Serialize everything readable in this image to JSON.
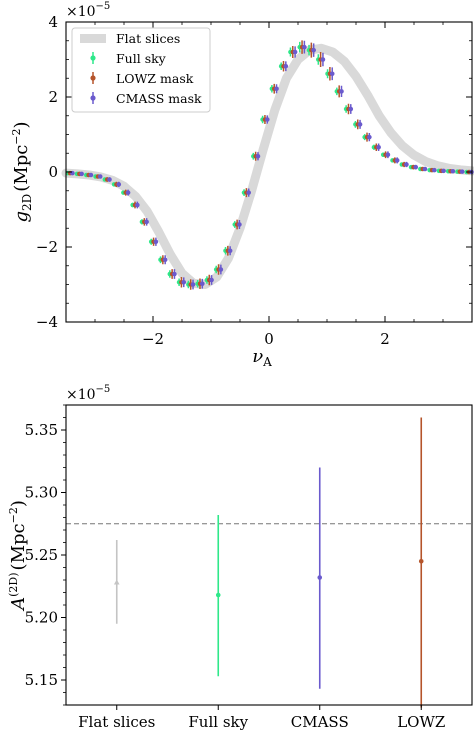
{
  "chart_data": [
    {
      "type": "line",
      "xlabel": "ν_A",
      "ylabel": "g_2D (Mpc^-2)",
      "ylabel_parts": {
        "sym": "g",
        "sub": "2D",
        "open": "(Mpc",
        "sup": "−2",
        "close": ")"
      },
      "xlabel_parts": {
        "sym": "ν",
        "sub": "A"
      },
      "multiplier": {
        "base": "×10",
        "exp": "−5"
      },
      "xlim": [
        -3.5,
        3.5
      ],
      "ylim": [
        -4,
        4
      ],
      "xticks": [
        -2,
        0,
        2
      ],
      "xtick_labels": [
        "−2",
        "0",
        "2"
      ],
      "yticks": [
        -4,
        -2,
        0,
        2,
        4
      ],
      "ytick_labels": [
        "−4",
        "−2",
        "0",
        "2",
        "4"
      ],
      "legend_position": "upper-left",
      "legend": [
        "Flat slices",
        "Full sky",
        "LOWZ mask",
        "CMASS mask"
      ],
      "colors": {
        "flat_band": "#d9d9d9",
        "full_sky": "#2ee88a",
        "lowz": "#b5542a",
        "cmass": "#6a5acd"
      },
      "series": [
        {
          "name": "Flat slices",
          "style": "band",
          "x": [
            -3.5,
            -3.3,
            -3.1,
            -2.9,
            -2.7,
            -2.5,
            -2.3,
            -2.1,
            -1.9,
            -1.7,
            -1.5,
            -1.3,
            -1.1,
            -0.9,
            -0.7,
            -0.5,
            -0.3,
            -0.1,
            0.1,
            0.3,
            0.5,
            0.7,
            0.9,
            1.1,
            1.3,
            1.5,
            1.7,
            1.9,
            2.1,
            2.3,
            2.5,
            2.7,
            2.9,
            3.1,
            3.3,
            3.5
          ],
          "y": [
            -0.03,
            -0.05,
            -0.08,
            -0.13,
            -0.22,
            -0.38,
            -0.65,
            -1.05,
            -1.6,
            -2.2,
            -2.7,
            -2.97,
            -3.0,
            -2.8,
            -2.3,
            -1.5,
            -0.5,
            0.6,
            1.65,
            2.5,
            3.0,
            3.25,
            3.3,
            3.2,
            2.95,
            2.55,
            2.05,
            1.5,
            1.05,
            0.7,
            0.45,
            0.28,
            0.17,
            0.1,
            0.06,
            0.03
          ]
        },
        {
          "name": "Full sky",
          "x": [
            -3.43,
            -3.27,
            -3.11,
            -2.95,
            -2.79,
            -2.63,
            -2.47,
            -2.31,
            -2.15,
            -1.99,
            -1.83,
            -1.67,
            -1.51,
            -1.35,
            -1.19,
            -1.03,
            -0.87,
            -0.71,
            -0.55,
            -0.39,
            -0.23,
            -0.07,
            0.09,
            0.25,
            0.41,
            0.57,
            0.73,
            0.89,
            1.05,
            1.21,
            1.37,
            1.53,
            1.69,
            1.85,
            2.01,
            2.17,
            2.33,
            2.49,
            2.65,
            2.81,
            2.97,
            3.13,
            3.29,
            3.45
          ],
          "y": [
            -0.03,
            -0.05,
            -0.08,
            -0.12,
            -0.2,
            -0.33,
            -0.55,
            -0.88,
            -1.33,
            -1.86,
            -2.34,
            -2.72,
            -2.94,
            -3.0,
            -2.98,
            -2.88,
            -2.6,
            -2.1,
            -1.4,
            -0.55,
            0.42,
            1.4,
            2.22,
            2.82,
            3.2,
            3.33,
            3.25,
            3.0,
            2.62,
            2.15,
            1.68,
            1.27,
            0.93,
            0.66,
            0.46,
            0.31,
            0.2,
            0.13,
            0.08,
            0.05,
            0.03,
            0.02,
            0.01,
            0.0
          ],
          "yerr": [
            0.03,
            0.03,
            0.03,
            0.04,
            0.04,
            0.05,
            0.05,
            0.06,
            0.07,
            0.08,
            0.09,
            0.1,
            0.1,
            0.1,
            0.1,
            0.1,
            0.1,
            0.1,
            0.09,
            0.09,
            0.09,
            0.1,
            0.1,
            0.1,
            0.12,
            0.14,
            0.14,
            0.14,
            0.12,
            0.1,
            0.1,
            0.09,
            0.08,
            0.07,
            0.06,
            0.05,
            0.05,
            0.04,
            0.04,
            0.03,
            0.03,
            0.03,
            0.03,
            0.03
          ]
        },
        {
          "name": "LOWZ mask",
          "x": [
            -3.43,
            -3.27,
            -3.11,
            -2.95,
            -2.79,
            -2.63,
            -2.47,
            -2.31,
            -2.15,
            -1.99,
            -1.83,
            -1.67,
            -1.51,
            -1.35,
            -1.19,
            -1.03,
            -0.87,
            -0.71,
            -0.55,
            -0.39,
            -0.23,
            -0.07,
            0.09,
            0.25,
            0.41,
            0.57,
            0.73,
            0.89,
            1.05,
            1.21,
            1.37,
            1.53,
            1.69,
            1.85,
            2.01,
            2.17,
            2.33,
            2.49,
            2.65,
            2.81,
            2.97,
            3.13,
            3.29,
            3.45
          ],
          "y": [
            -0.03,
            -0.05,
            -0.08,
            -0.12,
            -0.2,
            -0.33,
            -0.55,
            -0.88,
            -1.33,
            -1.86,
            -2.34,
            -2.72,
            -2.94,
            -3.0,
            -2.98,
            -2.88,
            -2.6,
            -2.1,
            -1.4,
            -0.55,
            0.42,
            1.4,
            2.22,
            2.82,
            3.2,
            3.33,
            3.25,
            3.0,
            2.62,
            2.15,
            1.68,
            1.27,
            0.93,
            0.66,
            0.46,
            0.31,
            0.2,
            0.13,
            0.08,
            0.05,
            0.03,
            0.02,
            0.01,
            0.0
          ],
          "yerr": [
            0.04,
            0.04,
            0.05,
            0.05,
            0.06,
            0.07,
            0.08,
            0.09,
            0.1,
            0.11,
            0.12,
            0.13,
            0.14,
            0.14,
            0.14,
            0.14,
            0.14,
            0.13,
            0.13,
            0.12,
            0.12,
            0.12,
            0.13,
            0.14,
            0.16,
            0.18,
            0.2,
            0.2,
            0.18,
            0.16,
            0.14,
            0.13,
            0.12,
            0.1,
            0.09,
            0.08,
            0.07,
            0.06,
            0.05,
            0.05,
            0.04,
            0.04,
            0.04,
            0.04
          ]
        },
        {
          "name": "CMASS mask",
          "x": [
            -3.43,
            -3.27,
            -3.11,
            -2.95,
            -2.79,
            -2.63,
            -2.47,
            -2.31,
            -2.15,
            -1.99,
            -1.83,
            -1.67,
            -1.51,
            -1.35,
            -1.19,
            -1.03,
            -0.87,
            -0.71,
            -0.55,
            -0.39,
            -0.23,
            -0.07,
            0.09,
            0.25,
            0.41,
            0.57,
            0.73,
            0.89,
            1.05,
            1.21,
            1.37,
            1.53,
            1.69,
            1.85,
            2.01,
            2.17,
            2.33,
            2.49,
            2.65,
            2.81,
            2.97,
            3.13,
            3.29,
            3.45
          ],
          "y": [
            -0.03,
            -0.05,
            -0.08,
            -0.12,
            -0.2,
            -0.33,
            -0.55,
            -0.88,
            -1.33,
            -1.86,
            -2.34,
            -2.72,
            -2.94,
            -3.0,
            -2.98,
            -2.88,
            -2.6,
            -2.1,
            -1.4,
            -0.55,
            0.42,
            1.4,
            2.22,
            2.82,
            3.2,
            3.33,
            3.25,
            3.0,
            2.62,
            2.15,
            1.68,
            1.27,
            0.93,
            0.66,
            0.46,
            0.31,
            0.2,
            0.13,
            0.08,
            0.05,
            0.03,
            0.02,
            0.01,
            0.0
          ],
          "yerr": [
            0.04,
            0.04,
            0.05,
            0.05,
            0.06,
            0.07,
            0.08,
            0.09,
            0.1,
            0.11,
            0.12,
            0.13,
            0.13,
            0.13,
            0.13,
            0.13,
            0.13,
            0.12,
            0.12,
            0.11,
            0.11,
            0.11,
            0.12,
            0.13,
            0.15,
            0.17,
            0.18,
            0.18,
            0.17,
            0.15,
            0.13,
            0.12,
            0.11,
            0.1,
            0.09,
            0.08,
            0.07,
            0.06,
            0.05,
            0.05,
            0.04,
            0.04,
            0.04,
            0.04
          ]
        }
      ]
    },
    {
      "type": "scatter",
      "xlabel": "",
      "ylabel": "A^(2D) (Mpc^-2)",
      "ylabel_parts": {
        "sym": "A",
        "sup1": "(2D)",
        "open": "(Mpc",
        "sup": "−2",
        "close": ")"
      },
      "multiplier": {
        "base": "×10",
        "exp": "−5"
      },
      "categories": [
        "Flat slices",
        "Full sky",
        "CMASS",
        "LOWZ"
      ],
      "ylim": [
        5.13,
        5.37
      ],
      "yticks": [
        5.15,
        5.2,
        5.25,
        5.3,
        5.35
      ],
      "ytick_labels": [
        "5.15",
        "5.20",
        "5.25",
        "5.30",
        "5.35"
      ],
      "reference_line": 5.275,
      "points": [
        {
          "category": "Flat slices",
          "value": 5.228,
          "low": 5.195,
          "high": 5.262,
          "color": "#c4c4c4",
          "marker": "triangle"
        },
        {
          "category": "Full sky",
          "value": 5.218,
          "low": 5.153,
          "high": 5.282,
          "color": "#2ee88a",
          "marker": "circle"
        },
        {
          "category": "CMASS",
          "value": 5.232,
          "low": 5.143,
          "high": 5.32,
          "color": "#6a5acd",
          "marker": "circle"
        },
        {
          "category": "LOWZ",
          "value": 5.245,
          "low": 5.128,
          "high": 5.36,
          "color": "#b5542a",
          "marker": "circle"
        }
      ]
    }
  ]
}
